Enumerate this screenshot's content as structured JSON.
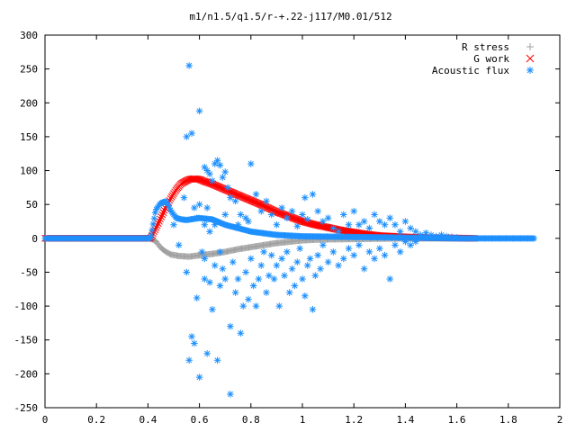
{
  "chart_data": {
    "type": "scatter",
    "title": "m1/n1.5/q1.5/r-+.22-j117/M0.01/512",
    "xlabel": "",
    "ylabel": "",
    "xlim": [
      0,
      2
    ],
    "ylim": [
      -250,
      300
    ],
    "x_ticks": [
      "0",
      "0.2",
      "0.4",
      "0.6",
      "0.8",
      "1",
      "1.2",
      "1.4",
      "1.6",
      "1.8",
      "2"
    ],
    "y_ticks": [
      "300",
      "250",
      "200",
      "150",
      "100",
      "50",
      "0",
      "-50",
      "-100",
      "-150",
      "-200",
      "-250"
    ],
    "grid": false,
    "legend_position": "top-right",
    "series": [
      {
        "name": "R stress",
        "marker": "plus",
        "color": "#a0a0a0",
        "curve": [
          [
            0.0,
            0
          ],
          [
            0.41,
            0
          ],
          [
            0.43,
            -4
          ],
          [
            0.45,
            -14
          ],
          [
            0.47,
            -20
          ],
          [
            0.49,
            -24
          ],
          [
            0.52,
            -26
          ],
          [
            0.56,
            -27
          ],
          [
            0.6,
            -25
          ],
          [
            0.65,
            -23
          ],
          [
            0.7,
            -20
          ],
          [
            0.75,
            -16
          ],
          [
            0.8,
            -13
          ],
          [
            0.85,
            -10
          ],
          [
            0.9,
            -7
          ],
          [
            0.95,
            -5
          ],
          [
            1.0,
            -3
          ],
          [
            1.05,
            -2
          ],
          [
            1.1,
            -1.5
          ],
          [
            1.2,
            -1
          ],
          [
            1.3,
            -0.5
          ],
          [
            1.4,
            0
          ],
          [
            1.67,
            0
          ]
        ]
      },
      {
        "name": "G work",
        "marker": "cross",
        "color": "#ff0000",
        "curve": [
          [
            0.0,
            0
          ],
          [
            0.41,
            0
          ],
          [
            0.43,
            14
          ],
          [
            0.45,
            30
          ],
          [
            0.47,
            46
          ],
          [
            0.49,
            60
          ],
          [
            0.51,
            72
          ],
          [
            0.53,
            81
          ],
          [
            0.56,
            87
          ],
          [
            0.58,
            88
          ],
          [
            0.6,
            87
          ],
          [
            0.62,
            84
          ],
          [
            0.65,
            80
          ],
          [
            0.7,
            72
          ],
          [
            0.75,
            64
          ],
          [
            0.8,
            56
          ],
          [
            0.85,
            48
          ],
          [
            0.9,
            39
          ],
          [
            0.95,
            32
          ],
          [
            1.0,
            25
          ],
          [
            1.05,
            20
          ],
          [
            1.1,
            16
          ],
          [
            1.15,
            12
          ],
          [
            1.2,
            9
          ],
          [
            1.25,
            6
          ],
          [
            1.3,
            4
          ],
          [
            1.35,
            3
          ],
          [
            1.4,
            2
          ],
          [
            1.5,
            1
          ],
          [
            1.67,
            0
          ]
        ]
      },
      {
        "name": "Acoustic flux",
        "marker": "asterisk",
        "color": "#1e90ff",
        "curve": [
          [
            0.0,
            0
          ],
          [
            0.41,
            0
          ],
          [
            0.43,
            42
          ],
          [
            0.45,
            52
          ],
          [
            0.47,
            55
          ],
          [
            0.48,
            48
          ],
          [
            0.49,
            40
          ],
          [
            0.5,
            35
          ],
          [
            0.51,
            30
          ],
          [
            0.53,
            28
          ],
          [
            0.55,
            27
          ],
          [
            0.6,
            30
          ],
          [
            0.65,
            28
          ],
          [
            0.7,
            20
          ],
          [
            0.8,
            10
          ],
          [
            0.9,
            5
          ],
          [
            1.0,
            3
          ],
          [
            1.2,
            2
          ],
          [
            1.4,
            1
          ],
          [
            1.6,
            0
          ],
          [
            1.9,
            0
          ]
        ],
        "points": [
          [
            0.56,
            255
          ],
          [
            0.6,
            188
          ],
          [
            0.55,
            150
          ],
          [
            0.57,
            155
          ],
          [
            0.55,
            -50
          ],
          [
            0.56,
            -180
          ],
          [
            0.57,
            -145
          ],
          [
            0.58,
            -155
          ],
          [
            0.59,
            -88
          ],
          [
            0.6,
            -205
          ],
          [
            0.62,
            -60
          ],
          [
            0.61,
            -20
          ],
          [
            0.62,
            -30
          ],
          [
            0.63,
            -170
          ],
          [
            0.64,
            -65
          ],
          [
            0.65,
            -105
          ],
          [
            0.66,
            -40
          ],
          [
            0.67,
            -180
          ],
          [
            0.68,
            -70
          ],
          [
            0.69,
            -45
          ],
          [
            0.7,
            -60
          ],
          [
            0.72,
            -130
          ],
          [
            0.72,
            -230
          ],
          [
            0.73,
            -35
          ],
          [
            0.74,
            -80
          ],
          [
            0.75,
            -60
          ],
          [
            0.76,
            -140
          ],
          [
            0.77,
            -100
          ],
          [
            0.78,
            -50
          ],
          [
            0.79,
            -90
          ],
          [
            0.8,
            -30
          ],
          [
            0.81,
            -70
          ],
          [
            0.82,
            -100
          ],
          [
            0.83,
            -60
          ],
          [
            0.84,
            -40
          ],
          [
            0.85,
            -20
          ],
          [
            0.86,
            -80
          ],
          [
            0.87,
            -55
          ],
          [
            0.88,
            -25
          ],
          [
            0.89,
            -60
          ],
          [
            0.9,
            -40
          ],
          [
            0.91,
            -100
          ],
          [
            0.92,
            -30
          ],
          [
            0.93,
            -55
          ],
          [
            0.94,
            -20
          ],
          [
            0.95,
            -80
          ],
          [
            0.96,
            -45
          ],
          [
            0.97,
            -70
          ],
          [
            0.98,
            -35
          ],
          [
            0.99,
            -15
          ],
          [
            1.0,
            -60
          ],
          [
            1.01,
            -85
          ],
          [
            1.02,
            -40
          ],
          [
            1.03,
            -30
          ],
          [
            1.04,
            -105
          ],
          [
            1.05,
            -55
          ],
          [
            1.06,
            -25
          ],
          [
            1.07,
            -45
          ],
          [
            1.08,
            -10
          ],
          [
            1.1,
            -35
          ],
          [
            1.12,
            -20
          ],
          [
            1.14,
            -40
          ],
          [
            1.16,
            -30
          ],
          [
            1.18,
            -15
          ],
          [
            1.2,
            -25
          ],
          [
            1.22,
            -10
          ],
          [
            1.24,
            -45
          ],
          [
            1.26,
            -20
          ],
          [
            1.28,
            -30
          ],
          [
            1.3,
            -15
          ],
          [
            1.32,
            -25
          ],
          [
            1.34,
            -60
          ],
          [
            1.36,
            -10
          ],
          [
            1.38,
            -20
          ],
          [
            1.4,
            -5
          ],
          [
            1.42,
            -10
          ],
          [
            1.44,
            -5
          ],
          [
            0.62,
            105
          ],
          [
            0.63,
            100
          ],
          [
            0.64,
            95
          ],
          [
            0.65,
            85
          ],
          [
            0.66,
            110
          ],
          [
            0.67,
            115
          ],
          [
            0.68,
            108
          ],
          [
            0.69,
            90
          ],
          [
            0.7,
            98
          ],
          [
            0.71,
            75
          ],
          [
            0.72,
            60
          ],
          [
            0.74,
            55
          ],
          [
            0.75,
            20
          ],
          [
            0.76,
            35
          ],
          [
            0.78,
            30
          ],
          [
            0.79,
            25
          ],
          [
            0.8,
            110
          ],
          [
            0.82,
            65
          ],
          [
            0.84,
            40
          ],
          [
            0.86,
            55
          ],
          [
            0.88,
            35
          ],
          [
            0.9,
            20
          ],
          [
            0.92,
            45
          ],
          [
            0.94,
            30
          ],
          [
            0.96,
            40
          ],
          [
            0.98,
            18
          ],
          [
            1.0,
            35
          ],
          [
            1.01,
            60
          ],
          [
            1.02,
            28
          ],
          [
            1.04,
            65
          ],
          [
            1.06,
            40
          ],
          [
            1.08,
            25
          ],
          [
            1.1,
            30
          ],
          [
            1.12,
            15
          ],
          [
            1.14,
            10
          ],
          [
            1.16,
            35
          ],
          [
            1.18,
            20
          ],
          [
            1.2,
            40
          ],
          [
            1.22,
            20
          ],
          [
            1.24,
            25
          ],
          [
            1.26,
            15
          ],
          [
            1.28,
            35
          ],
          [
            1.3,
            25
          ],
          [
            1.32,
            20
          ],
          [
            1.34,
            30
          ],
          [
            1.36,
            20
          ],
          [
            1.38,
            10
          ],
          [
            1.4,
            25
          ],
          [
            1.42,
            15
          ],
          [
            1.44,
            10
          ],
          [
            1.46,
            5
          ],
          [
            1.48,
            8
          ],
          [
            1.5,
            5
          ],
          [
            1.52,
            3
          ],
          [
            1.54,
            5
          ],
          [
            1.56,
            3
          ],
          [
            1.58,
            2
          ],
          [
            1.6,
            1
          ],
          [
            0.5,
            20
          ],
          [
            0.52,
            -10
          ],
          [
            0.54,
            60
          ],
          [
            0.58,
            45
          ],
          [
            0.59,
            30
          ],
          [
            0.6,
            50
          ],
          [
            0.62,
            20
          ],
          [
            0.63,
            45
          ],
          [
            0.64,
            10
          ],
          [
            0.66,
            20
          ],
          [
            0.68,
            -20
          ],
          [
            0.7,
            35
          ]
        ]
      }
    ]
  }
}
